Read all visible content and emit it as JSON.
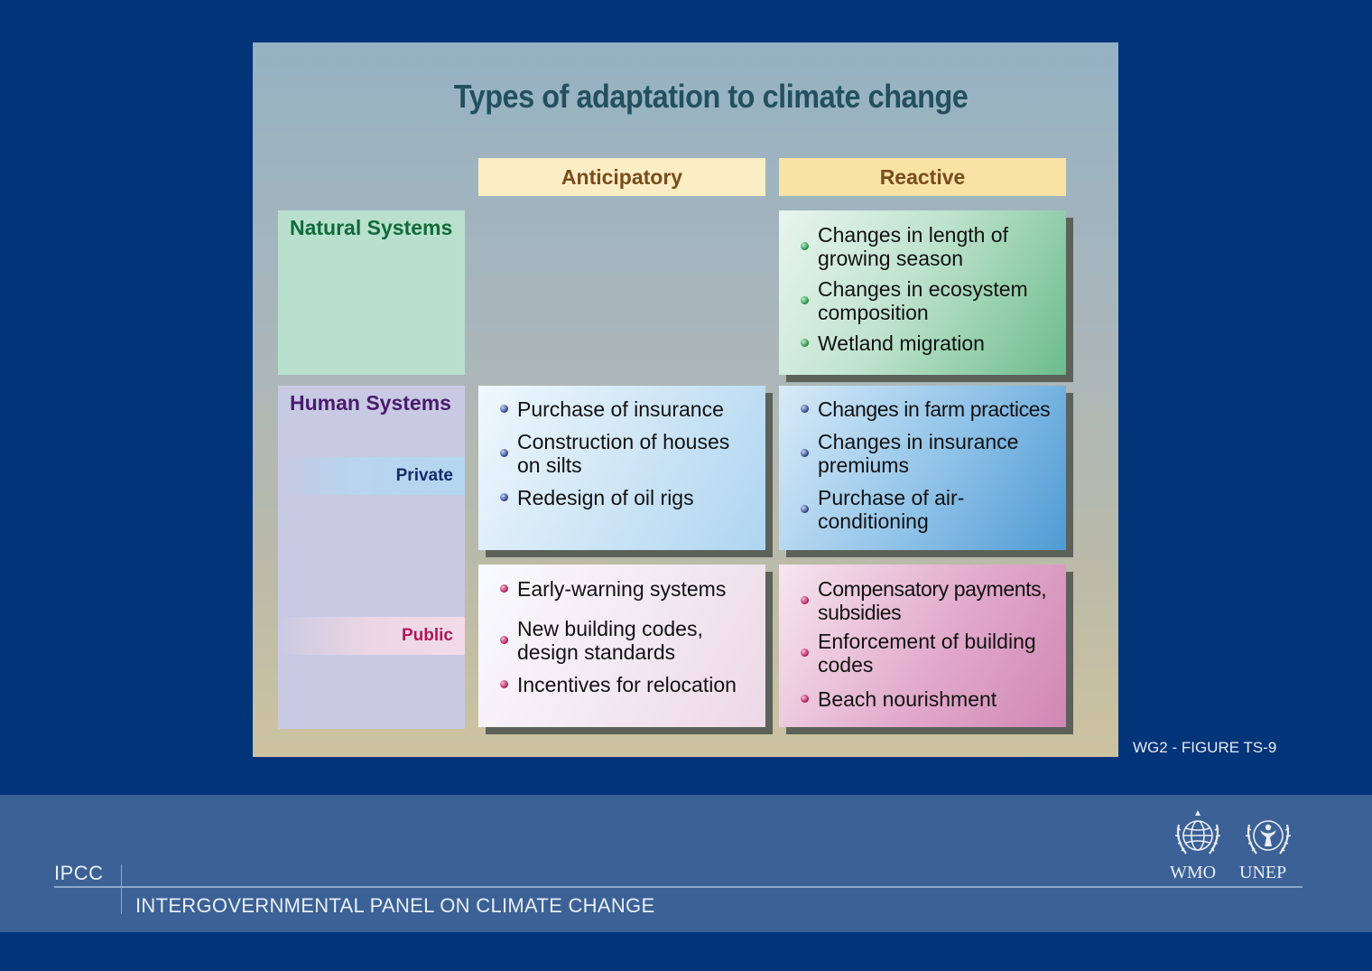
{
  "title": "Types of adaptation to climate change",
  "columns": {
    "anticipatory": "Anticipatory",
    "reactive": "Reactive"
  },
  "rows": {
    "natural": "Natural Systems",
    "human": "Human Systems",
    "private": "Private",
    "public": "Public"
  },
  "cells": {
    "natural_reactive": [
      "Changes in length of growing season",
      "Changes in ecosystem composition",
      "Wetland migration"
    ],
    "private_anticipatory": [
      "Purchase of insurance",
      "Construction of houses on silts",
      "Redesign of oil rigs"
    ],
    "private_reactive": [
      "Changes in farm practices",
      "Changes in insurance premiums",
      "Purchase of air-conditioning"
    ],
    "public_anticipatory": [
      "Early-warning systems",
      "New building codes, design standards",
      "Incentives for relocation"
    ],
    "public_reactive": [
      "Compensatory payments, subsidies",
      "Enforcement of building codes",
      "Beach nourishment"
    ]
  },
  "caption": "WG2 - FIGURE TS-9",
  "footer": {
    "short": "IPCC",
    "full": "INTERGOVERNMENTAL PANEL ON CLIMATE CHANGE",
    "logos": [
      "WMO",
      "UNEP"
    ]
  },
  "colors": {
    "background": "#02347a",
    "footer_band": "#3b6196",
    "natural": "#b9e0cc",
    "human": "#c8cae3",
    "bullet_green": "#1d8a3e",
    "bullet_blue": "#27388a",
    "bullet_pink": "#b01556"
  }
}
